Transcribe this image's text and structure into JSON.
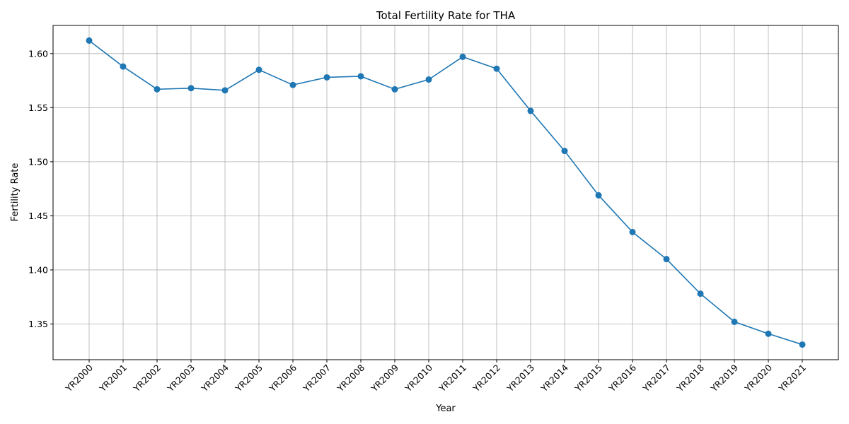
{
  "chart_data": {
    "type": "line",
    "title": "Total Fertility Rate for THA",
    "xlabel": "Year",
    "ylabel": "Fertility Rate",
    "categories": [
      "YR2000",
      "YR2001",
      "YR2002",
      "YR2003",
      "YR2004",
      "YR2005",
      "YR2006",
      "YR2007",
      "YR2008",
      "YR2009",
      "YR2010",
      "YR2011",
      "YR2012",
      "YR2013",
      "YR2014",
      "YR2015",
      "YR2016",
      "YR2017",
      "YR2018",
      "YR2019",
      "YR2020",
      "YR2021"
    ],
    "series": [
      {
        "values": [
          1.612,
          1.588,
          1.567,
          1.568,
          1.566,
          1.585,
          1.571,
          1.578,
          1.579,
          1.567,
          1.576,
          1.597,
          1.586,
          1.547,
          1.51,
          1.469,
          1.435,
          1.41,
          1.378,
          1.352,
          1.341,
          1.331
        ],
        "color": "#1f77b4",
        "marker": "circle"
      }
    ],
    "yticks": [
      1.35,
      1.4,
      1.45,
      1.5,
      1.55,
      1.6
    ],
    "ytick_labels": [
      "1.35",
      "1.40",
      "1.45",
      "1.50",
      "1.55",
      "1.60"
    ],
    "ylim": [
      1.317,
      1.626
    ],
    "grid": true,
    "legend": "none"
  }
}
